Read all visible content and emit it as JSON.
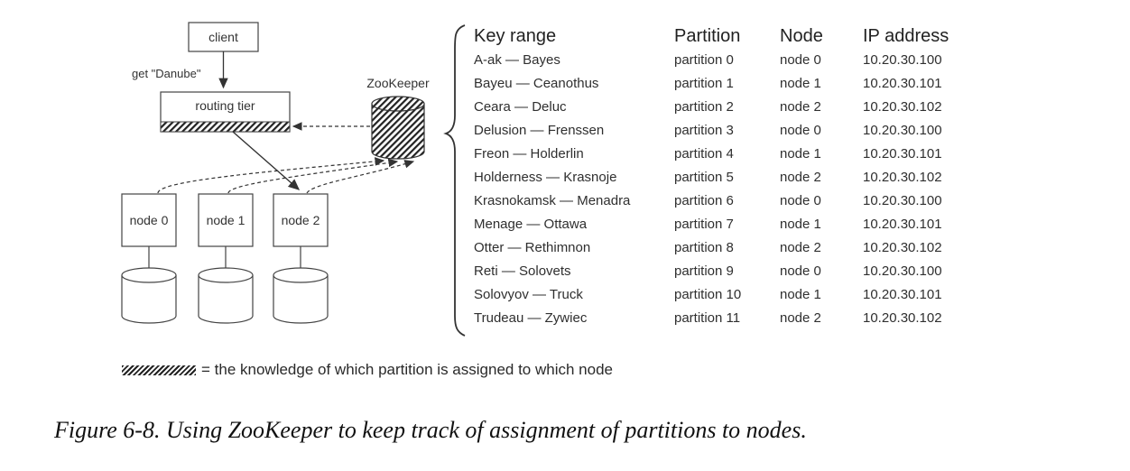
{
  "diagram": {
    "client_label": "client",
    "request_label": "get \"Danube\"",
    "routing_tier_label": "routing tier",
    "zookeeper_label": "ZooKeeper",
    "nodes": [
      "node 0",
      "node 1",
      "node 2"
    ]
  },
  "table": {
    "headers": [
      "Key range",
      "Partition",
      "Node",
      "IP address"
    ],
    "rows": [
      [
        "A-ak — Bayes",
        "partition 0",
        "node 0",
        "10.20.30.100"
      ],
      [
        "Bayeu — Ceanothus",
        "partition 1",
        "node 1",
        "10.20.30.101"
      ],
      [
        "Ceara — Deluc",
        "partition 2",
        "node 2",
        "10.20.30.102"
      ],
      [
        "Delusion — Frenssen",
        "partition 3",
        "node 0",
        "10.20.30.100"
      ],
      [
        "Freon — Holderlin",
        "partition 4",
        "node 1",
        "10.20.30.101"
      ],
      [
        "Holderness — Krasnoje",
        "partition 5",
        "node 2",
        "10.20.30.102"
      ],
      [
        "Krasnokamsk — Menadra",
        "partition 6",
        "node 0",
        "10.20.30.100"
      ],
      [
        "Menage — Ottawa",
        "partition 7",
        "node 1",
        "10.20.30.101"
      ],
      [
        "Otter — Rethimnon",
        "partition 8",
        "node 2",
        "10.20.30.102"
      ],
      [
        "Reti — Solovets",
        "partition 9",
        "node 0",
        "10.20.30.100"
      ],
      [
        "Solovyov — Truck",
        "partition 10",
        "node 1",
        "10.20.30.101"
      ],
      [
        "Trudeau — Zywiec",
        "partition 11",
        "node 2",
        "10.20.30.102"
      ]
    ]
  },
  "legend": {
    "text": "= the knowledge of which partition is assigned to which node"
  },
  "caption": "Figure 6-8. Using ZooKeeper to keep track of assignment of partitions to nodes."
}
